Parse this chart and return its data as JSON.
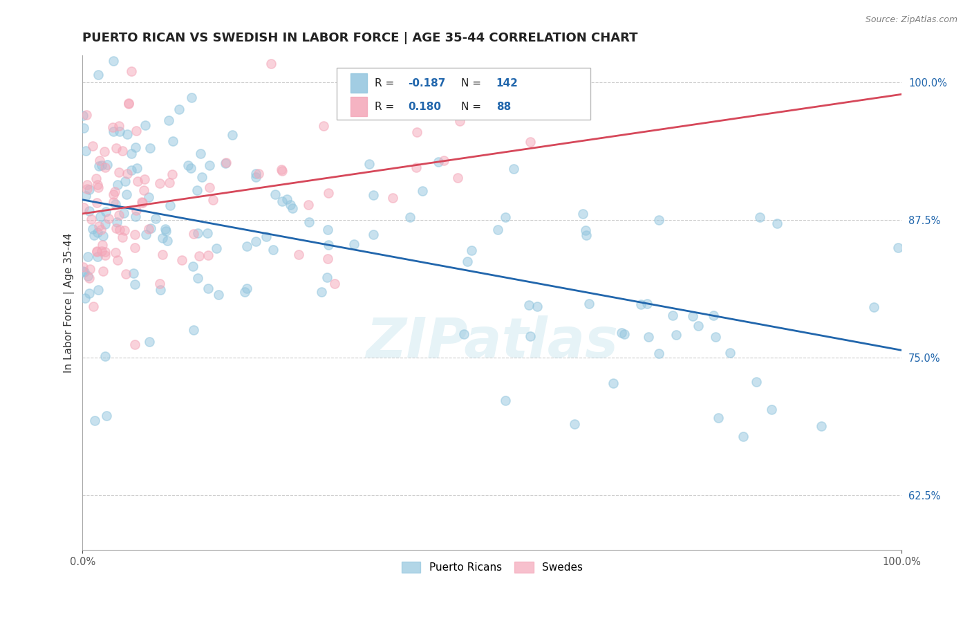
{
  "title": "PUERTO RICAN VS SWEDISH IN LABOR FORCE | AGE 35-44 CORRELATION CHART",
  "source_text": "Source: ZipAtlas.com",
  "ylabel": "In Labor Force | Age 35-44",
  "legend_label_blue": "Puerto Ricans",
  "legend_label_pink": "Swedes",
  "R_blue": -0.187,
  "N_blue": 142,
  "R_pink": 0.18,
  "N_pink": 88,
  "color_blue": "#92c5de",
  "color_pink": "#f4a6b8",
  "line_color_blue": "#2166ac",
  "line_color_pink": "#d6485a",
  "watermark": "ZIPatlas",
  "xlim": [
    0.0,
    1.0
  ],
  "ylim": [
    0.575,
    1.025
  ],
  "x_tick_labels": [
    "0.0%",
    "100.0%"
  ],
  "y_ticks": [
    0.625,
    0.75,
    0.875,
    1.0
  ],
  "y_tick_labels": [
    "62.5%",
    "75.0%",
    "87.5%",
    "100.0%"
  ],
  "background_color": "#ffffff",
  "grid_color": "#cccccc",
  "title_fontsize": 13,
  "axis_label_fontsize": 11,
  "tick_fontsize": 10.5,
  "seed": 99,
  "blue_intercept": 0.895,
  "blue_slope": -0.128,
  "pink_intercept": 0.876,
  "pink_slope": 0.115
}
